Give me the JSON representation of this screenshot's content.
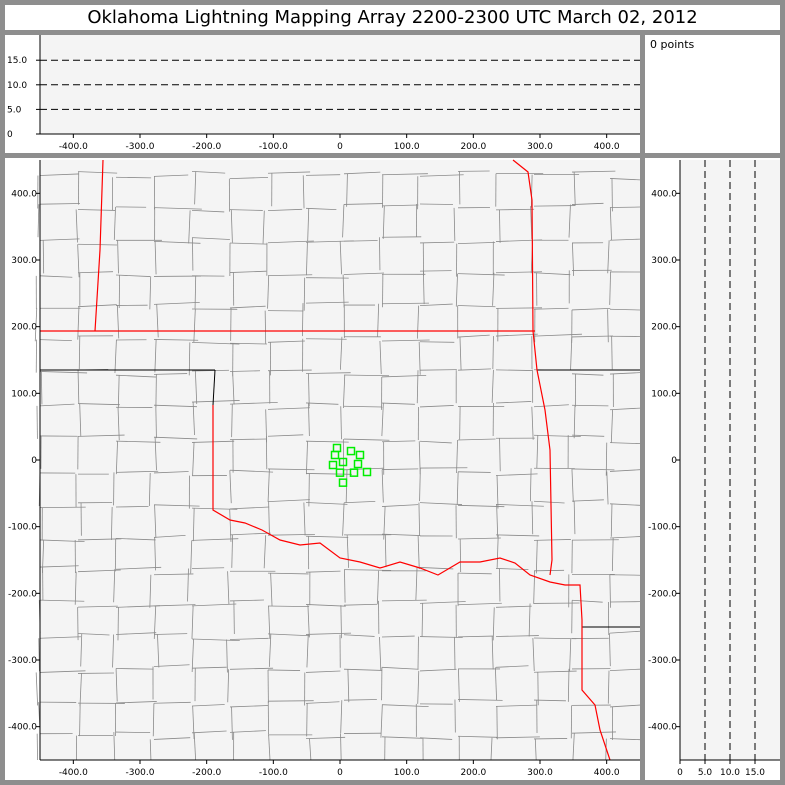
{
  "header": {
    "title": "Oklahoma Lightning Mapping Array   2200-2300 UTC  March 02, 2012"
  },
  "info": {
    "points_label": "0 points"
  },
  "colors": {
    "background": "#8e8e8e",
    "plot_bg": "#f4f4f4",
    "state_border": "#ff0000",
    "county_border": "#8a8a8a",
    "source_marker": "#00ee00"
  },
  "chart_data": [
    {
      "type": "scatter",
      "name_role": "altitude-vs-east-west",
      "xlim": [
        -450,
        450
      ],
      "ylim": [
        0,
        20
      ],
      "x_ticks": [
        "-400.0",
        "-300.0",
        "-200.0",
        "-100.0",
        "0",
        "100.0",
        "200.0",
        "300.0",
        "400.0"
      ],
      "x_tick_values": [
        -400,
        -300,
        -200,
        -100,
        0,
        100,
        200,
        300,
        400
      ],
      "y_ticks": [
        "0",
        "5.0",
        "10.0",
        "15.0"
      ],
      "y_tick_values": [
        0,
        5,
        10,
        15
      ],
      "grid": "dashed horizontal at 5,10,15",
      "points": []
    },
    {
      "type": "scatter",
      "name_role": "plan-view-map",
      "xlim": [
        -450,
        450
      ],
      "ylim": [
        -450,
        450
      ],
      "x_ticks": [
        "-400.0",
        "-300.0",
        "-200.0",
        "-100.0",
        "0",
        "100.0",
        "200.0",
        "300.0",
        "400.0"
      ],
      "x_tick_values": [
        -400,
        -300,
        -200,
        -100,
        0,
        100,
        200,
        300,
        400
      ],
      "y_ticks": [
        "400.0",
        "300.0",
        "200.0",
        "100.0",
        "0",
        "-100.0",
        "-200.0",
        "-300.0",
        "-400.0"
      ],
      "y_tick_values": [
        400,
        300,
        200,
        100,
        0,
        -100,
        -200,
        -300,
        -400
      ],
      "markers": "hollow green squares (LMA stations)",
      "points": [
        {
          "x": -4.5,
          "y": 18
        },
        {
          "x": 16.5,
          "y": 13.4
        },
        {
          "x": 30,
          "y": 7.5
        },
        {
          "x": -7.5,
          "y": 7.5
        },
        {
          "x": 4.5,
          "y": -3
        },
        {
          "x": -10.5,
          "y": -7.5
        },
        {
          "x": 27,
          "y": -6
        },
        {
          "x": 0,
          "y": -19
        },
        {
          "x": 21,
          "y": -19
        },
        {
          "x": 40.5,
          "y": -18
        },
        {
          "x": 4.5,
          "y": -34
        }
      ]
    },
    {
      "type": "scatter",
      "name_role": "north-south-vs-altitude",
      "xlim": [
        0,
        20
      ],
      "ylim": [
        -450,
        450
      ],
      "x_ticks": [
        "0",
        "5.0",
        "10.0",
        "15.0"
      ],
      "x_tick_values": [
        0,
        5,
        10,
        15
      ],
      "y_ticks": [
        "400.0",
        "300.0",
        "200.0",
        "100.0",
        "0",
        "-100.0",
        "-200.0",
        "-300.0",
        "-400.0"
      ],
      "y_tick_values": [
        400,
        300,
        200,
        100,
        0,
        -100,
        -200,
        -300,
        -400
      ],
      "grid": "dashed vertical at 5,10,15",
      "points": []
    }
  ]
}
